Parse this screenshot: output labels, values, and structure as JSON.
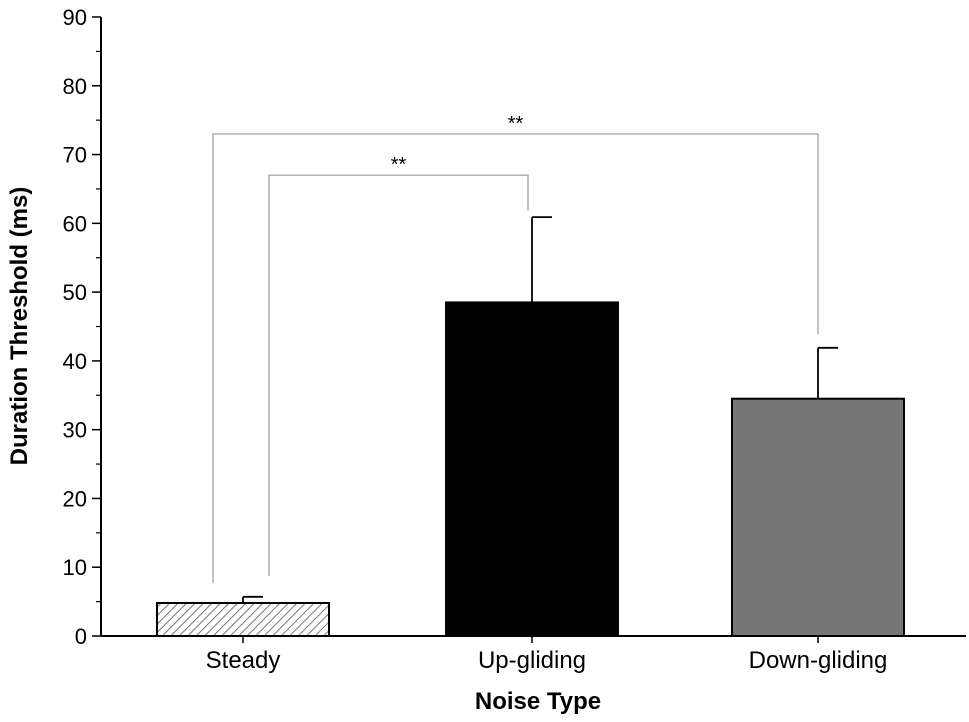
{
  "chart_data": {
    "type": "bar",
    "title": "",
    "xlabel": "Noise Type",
    "ylabel": "Duration Threshold (ms)",
    "ylim": [
      0,
      90
    ],
    "yticks": [
      0,
      10,
      20,
      30,
      40,
      50,
      60,
      70,
      80,
      90
    ],
    "categories": [
      "Steady",
      "Up-gliding",
      "Down-gliding"
    ],
    "values": [
      4.8,
      48.5,
      34.5
    ],
    "error_plus": [
      0.9,
      12.4,
      7.4
    ],
    "bar_styles": [
      "hatched",
      "solid",
      "solid"
    ],
    "bar_colors": [
      "#ffffff",
      "#000000",
      "#777777"
    ],
    "grid": false,
    "legend": "none",
    "significance": [
      {
        "from": "Steady",
        "to": "Up-gliding",
        "label": "**",
        "level": 67
      },
      {
        "from": "Steady",
        "to": "Down-gliding",
        "label": "**",
        "level": 73
      }
    ]
  }
}
